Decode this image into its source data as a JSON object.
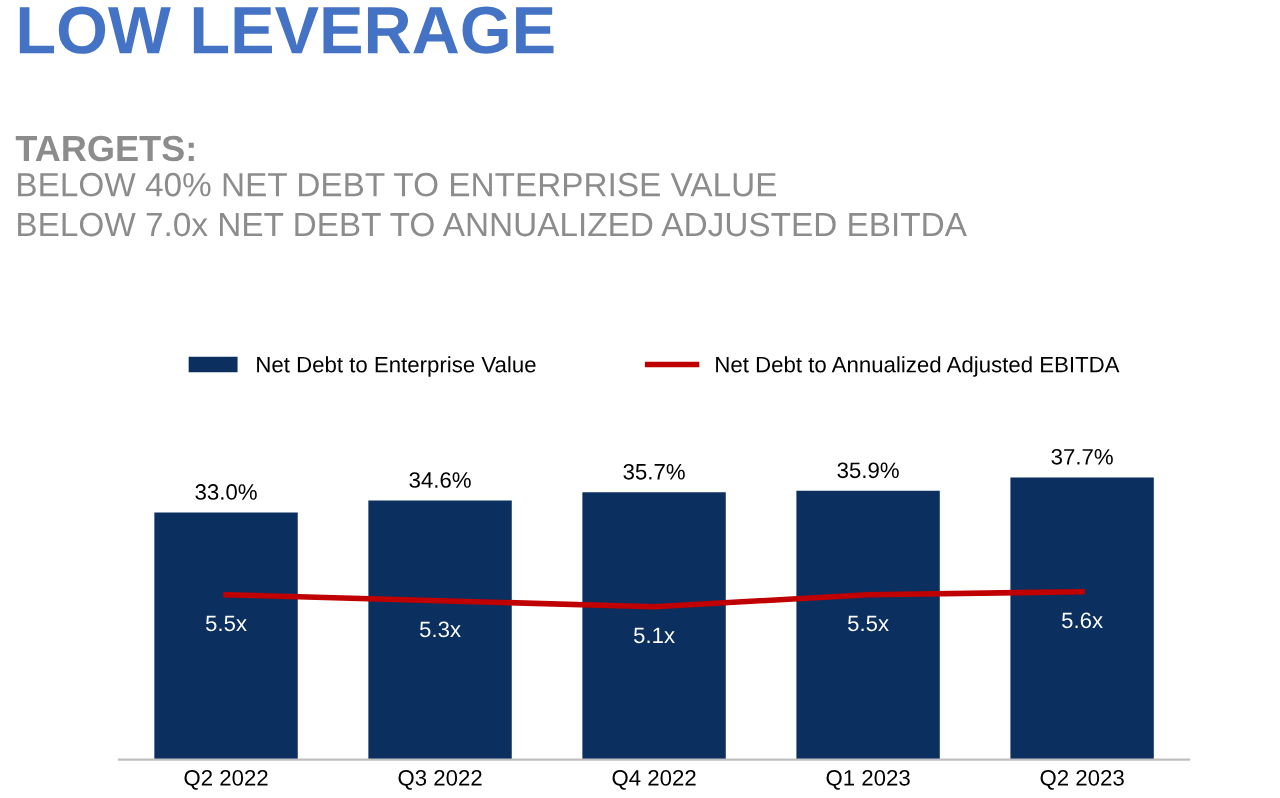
{
  "chart_data": {
    "type": "bar",
    "title": "LOW LEVERAGE",
    "subtitle": "TARGETS:",
    "annotations": [
      "BELOW 40% NET DEBT TO ENTERPRISE VALUE",
      "BELOW 7.0x NET DEBT TO ANNUALIZED ADJUSTED EBITDA"
    ],
    "categories": [
      "Q2 2022",
      "Q3 2022",
      "Q4 2022",
      "Q1 2023",
      "Q2 2023"
    ],
    "series": [
      {
        "name": "Net Debt to Enterprise Value",
        "color": "#0b2f5e",
        "values": [
          33.0,
          34.6,
          35.7,
          35.9,
          37.7
        ],
        "value_labels": [
          "33.0%",
          "34.6%",
          "35.7%",
          "35.9%",
          "37.7%"
        ]
      },
      {
        "name": "Net Debt to Annualized Adjusted EBITDA",
        "type": "line",
        "axis": "y2",
        "color": "#c00000",
        "values": [
          5.5,
          5.3,
          5.1,
          5.5,
          5.6
        ],
        "value_labels": [
          "5.5x",
          "5.3x",
          "5.1x",
          "5.5x",
          "5.6x"
        ]
      }
    ],
    "tick_labels": "x",
    "legend": "top",
    "marker": "none",
    "line_style": "solid"
  }
}
